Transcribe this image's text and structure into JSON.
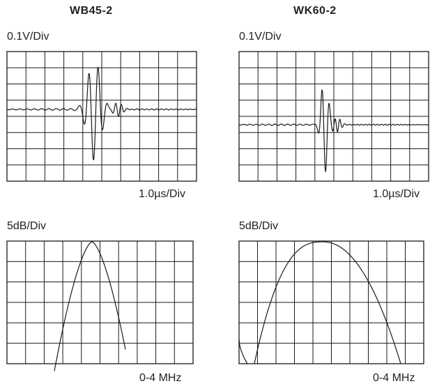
{
  "left": {
    "title": "WB45-2",
    "waveform": {
      "scale_label": "0.1V/Div",
      "time_label": "1.0µs/Div"
    },
    "spectrum": {
      "scale_label": "5dB/Div",
      "freq_label": "0-4 MHz"
    }
  },
  "right": {
    "title": "WK60-2",
    "waveform": {
      "scale_label": "0.1V/Div",
      "time_label": "1.0µs/Div"
    },
    "spectrum": {
      "scale_label": "5dB/Div",
      "freq_label": "0-4 MHz"
    }
  }
}
